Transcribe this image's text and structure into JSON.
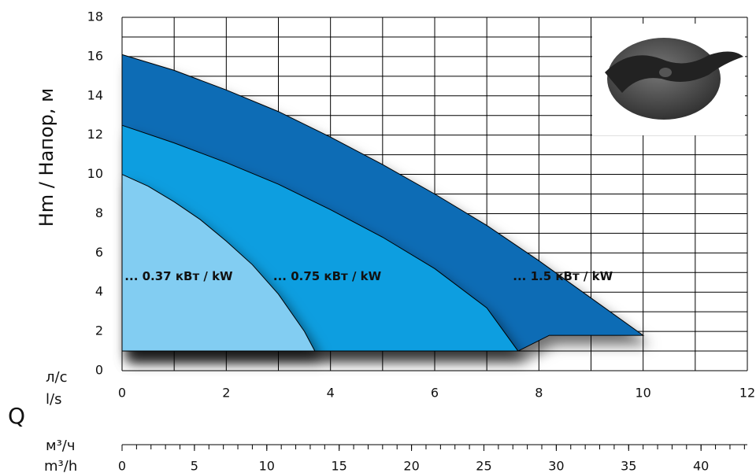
{
  "chart_data": {
    "type": "area",
    "y_label": "Hm / Напор, м",
    "x_label": "Q",
    "x_unit_ru": "л/с",
    "x_unit_en": "l/s",
    "x2_unit_ru": "м³/ч",
    "x2_unit_en": "m³/h",
    "xlim": [
      0,
      12
    ],
    "xticks": [
      0,
      2,
      4,
      6,
      8,
      10,
      12
    ],
    "xgridlines": [
      0,
      1,
      2,
      3,
      4,
      5,
      6,
      7,
      8,
      9,
      10,
      11,
      12
    ],
    "ylim": [
      0,
      18
    ],
    "yticks": [
      0,
      2,
      4,
      6,
      8,
      10,
      12,
      14,
      16,
      18
    ],
    "ygridlines": [
      0,
      1,
      2,
      3,
      4,
      5,
      6,
      7,
      8,
      9,
      10,
      11,
      12,
      13,
      14,
      15,
      16,
      17,
      18
    ],
    "x2lim": [
      0,
      43.2
    ],
    "x2ticks": [
      0,
      5,
      10,
      15,
      20,
      25,
      30,
      35,
      40
    ],
    "x2minor_ticks": [
      0,
      1,
      2,
      3,
      4,
      5,
      6,
      7,
      8,
      9,
      10,
      11,
      12,
      13,
      14,
      15,
      16,
      17,
      18,
      19,
      20,
      21,
      22,
      23,
      24,
      25,
      26,
      27,
      28,
      29,
      30,
      31,
      32,
      33,
      34,
      35,
      36,
      37,
      38,
      39,
      40,
      41,
      42,
      43
    ],
    "grid": true,
    "series": [
      {
        "name": "... 1.5 кВт / kW",
        "color": "#0a6cb5",
        "x": [
          0,
          1,
          2,
          3,
          4,
          5,
          6,
          7,
          8,
          9,
          10
        ],
        "values": [
          16.1,
          15.3,
          14.3,
          13.2,
          11.9,
          10.5,
          9.0,
          7.4,
          5.6,
          3.7,
          1.8
        ],
        "lower_x": [
          10,
          8.2,
          7.6,
          0
        ],
        "lower_values": [
          1.8,
          1.8,
          1.0,
          1.0
        ]
      },
      {
        "name": "... 0.75 кВт / kW",
        "color": "#0a9ee0",
        "x": [
          0,
          1,
          2,
          3,
          4,
          5,
          6,
          7,
          7.6
        ],
        "values": [
          12.5,
          11.6,
          10.6,
          9.5,
          8.2,
          6.8,
          5.2,
          3.2,
          1.0
        ],
        "lower_x": [
          7.6,
          0
        ],
        "lower_values": [
          1.0,
          1.0
        ]
      },
      {
        "name": "... 0.37 кВт / kW",
        "color": "#82cdf2",
        "x": [
          0,
          0.5,
          1,
          1.5,
          2,
          2.5,
          3,
          3.5,
          3.7
        ],
        "values": [
          10,
          9.4,
          8.6,
          7.7,
          6.6,
          5.4,
          3.9,
          2.0,
          1.0
        ],
        "lower_x": [
          3.7,
          0
        ],
        "lower_values": [
          1.0,
          1.0
        ]
      }
    ]
  }
}
